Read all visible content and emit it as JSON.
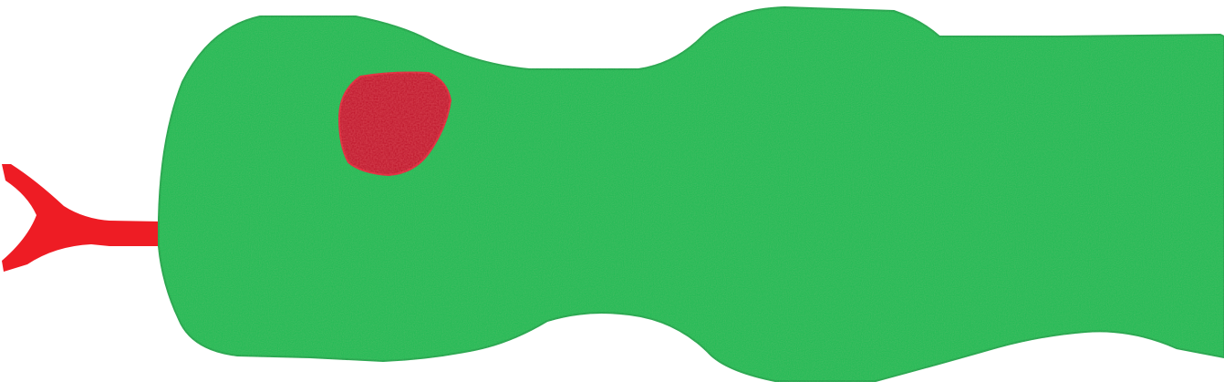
{
  "image": {
    "subject": "snake-drawing",
    "colors": {
      "background": "#ffffff",
      "body": "#22bb55",
      "body_edge": "#1fa84c",
      "tongue": "#ee1c24",
      "eye": "#bb1122",
      "eye_highlight": "#dd2233"
    }
  }
}
